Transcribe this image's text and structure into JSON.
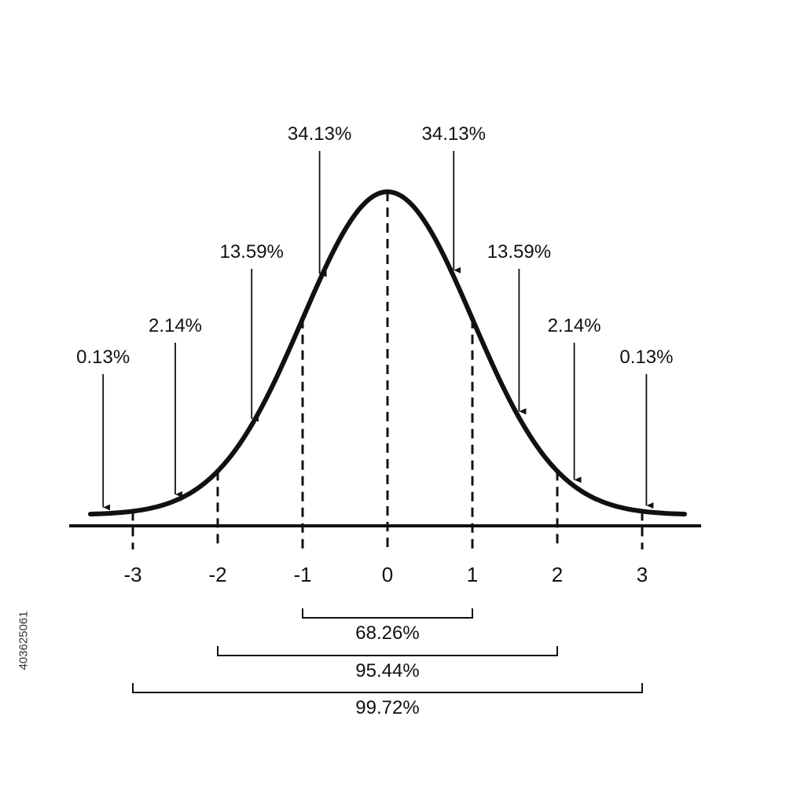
{
  "watermark": {
    "id_text": "403625061"
  },
  "chart_data": {
    "type": "area",
    "title": "",
    "xlabel": "",
    "ylabel": "",
    "xlim": [
      -3.5,
      3.5
    ],
    "x_ticks": [
      -3,
      -2,
      -1,
      0,
      1,
      2,
      3
    ],
    "x_tick_labels": [
      "-3",
      "-2",
      "-1",
      "0",
      "1",
      "2",
      "3"
    ],
    "curve": {
      "distribution": "normal",
      "mean": 0,
      "sd": 1
    },
    "segments": [
      {
        "label": "0.13%",
        "value": 0.13,
        "x_from": -3.5,
        "x_to": -3,
        "arrow_x": -3.35
      },
      {
        "label": "2.14%",
        "value": 2.14,
        "x_from": -3,
        "x_to": -2,
        "arrow_x": -2.5
      },
      {
        "label": "13.59%",
        "value": 13.59,
        "x_from": -2,
        "x_to": -1,
        "arrow_x": -1.6
      },
      {
        "label": "34.13%",
        "value": 34.13,
        "x_from": -1,
        "x_to": 0,
        "arrow_x": -0.8
      },
      {
        "label": "34.13%",
        "value": 34.13,
        "x_from": 0,
        "x_to": 1,
        "arrow_x": 0.78
      },
      {
        "label": "13.59%",
        "value": 13.59,
        "x_from": 1,
        "x_to": 2,
        "arrow_x": 1.55
      },
      {
        "label": "2.14%",
        "value": 2.14,
        "x_from": 2,
        "x_to": 3,
        "arrow_x": 2.2
      },
      {
        "label": "0.13%",
        "value": 0.13,
        "x_from": 3,
        "x_to": 3.5,
        "arrow_x": 3.05
      }
    ],
    "ranges": [
      {
        "label": "68.26%",
        "value": 68.26,
        "x_from": -1,
        "x_to": 1
      },
      {
        "label": "95.44%",
        "value": 95.44,
        "x_from": -2,
        "x_to": 2
      },
      {
        "label": "99.72%",
        "value": 99.72,
        "x_from": -3,
        "x_to": 3
      }
    ],
    "grid": false,
    "legend": "none"
  }
}
